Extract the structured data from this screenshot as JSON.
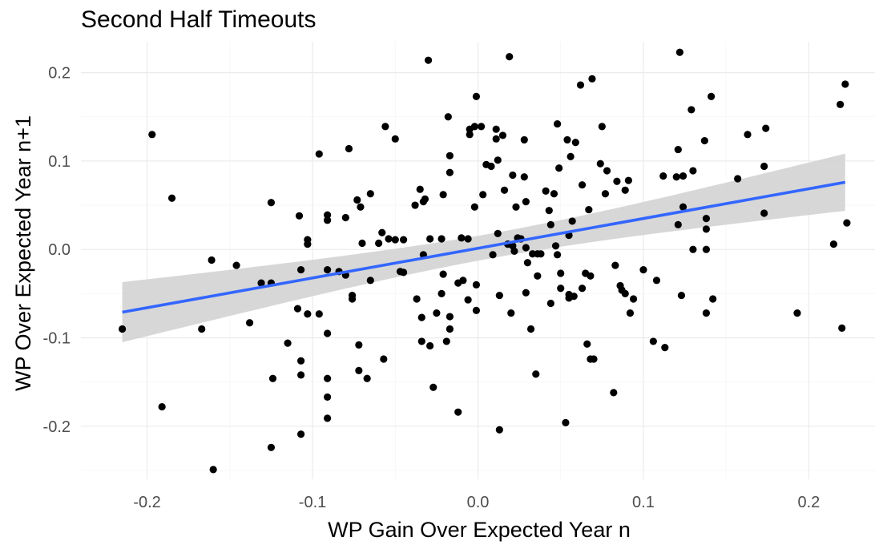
{
  "chart_data": {
    "type": "scatter",
    "title": "Second Half Timeouts",
    "xlabel": "WP Gain Over Expected Year n",
    "ylabel": "WP Over Expected Year n+1",
    "xlim": [
      -0.24,
      0.24
    ],
    "ylim": [
      -0.26,
      0.235
    ],
    "x_ticks": [
      -0.2,
      -0.1,
      0.0,
      0.1,
      0.2
    ],
    "x_tick_labels": [
      "-0.2",
      "-0.1",
      "0.0",
      "0.1",
      "0.2"
    ],
    "y_ticks": [
      -0.2,
      -0.1,
      0.0,
      0.1,
      0.2
    ],
    "y_tick_labels": [
      "-0.2",
      "-0.1",
      "0.0",
      "0.1",
      "0.2"
    ],
    "grid": true,
    "colors": {
      "points": "#000000",
      "fit_line": "#3366FF",
      "ribbon": "#d3d3d3"
    },
    "fit": {
      "method": "linear",
      "x_range": [
        -0.215,
        0.222
      ],
      "y_at_ends": [
        -0.071,
        0.076
      ],
      "ci_lower_at_ends": [
        -0.105,
        0.043
      ],
      "ci_upper_at_ends": [
        -0.037,
        0.109
      ],
      "ci_width_at_center": 0.014,
      "center_x": 0.01
    },
    "points": [
      {
        "x": -0.215,
        "y": -0.09
      },
      {
        "x": -0.197,
        "y": 0.13
      },
      {
        "x": -0.191,
        "y": -0.178
      },
      {
        "x": -0.185,
        "y": 0.058
      },
      {
        "x": -0.167,
        "y": -0.09
      },
      {
        "x": -0.161,
        "y": -0.012
      },
      {
        "x": -0.16,
        "y": -0.249
      },
      {
        "x": -0.146,
        "y": -0.018
      },
      {
        "x": -0.138,
        "y": -0.083
      },
      {
        "x": -0.131,
        "y": -0.038
      },
      {
        "x": -0.125,
        "y": 0.053
      },
      {
        "x": -0.125,
        "y": -0.038
      },
      {
        "x": -0.125,
        "y": -0.224
      },
      {
        "x": -0.124,
        "y": -0.146
      },
      {
        "x": -0.115,
        "y": -0.106
      },
      {
        "x": -0.109,
        "y": -0.067
      },
      {
        "x": -0.108,
        "y": 0.038
      },
      {
        "x": -0.107,
        "y": -0.126
      },
      {
        "x": -0.107,
        "y": -0.142
      },
      {
        "x": -0.107,
        "y": -0.209
      },
      {
        "x": -0.107,
        "y": -0.023
      },
      {
        "x": -0.103,
        "y": -0.073
      },
      {
        "x": -0.103,
        "y": 0.006
      },
      {
        "x": -0.103,
        "y": 0.011
      },
      {
        "x": -0.096,
        "y": 0.108
      },
      {
        "x": -0.096,
        "y": -0.073
      },
      {
        "x": -0.091,
        "y": 0.039
      },
      {
        "x": -0.091,
        "y": 0.033
      },
      {
        "x": -0.091,
        "y": -0.095
      },
      {
        "x": -0.091,
        "y": -0.146
      },
      {
        "x": -0.091,
        "y": -0.167
      },
      {
        "x": -0.091,
        "y": -0.191
      },
      {
        "x": -0.091,
        "y": -0.023
      },
      {
        "x": -0.084,
        "y": -0.025
      },
      {
        "x": -0.08,
        "y": -0.029
      },
      {
        "x": -0.08,
        "y": 0.036
      },
      {
        "x": -0.078,
        "y": 0.114
      },
      {
        "x": -0.076,
        "y": -0.052
      },
      {
        "x": -0.076,
        "y": -0.056
      },
      {
        "x": -0.073,
        "y": 0.056
      },
      {
        "x": -0.072,
        "y": -0.108
      },
      {
        "x": -0.072,
        "y": -0.137
      },
      {
        "x": -0.071,
        "y": 0.048
      },
      {
        "x": -0.07,
        "y": 0.007
      },
      {
        "x": -0.067,
        "y": -0.146
      },
      {
        "x": -0.065,
        "y": 0.063
      },
      {
        "x": -0.065,
        "y": -0.035
      },
      {
        "x": -0.06,
        "y": 0.007
      },
      {
        "x": -0.058,
        "y": 0.019
      },
      {
        "x": -0.057,
        "y": -0.124
      },
      {
        "x": -0.056,
        "y": 0.139
      },
      {
        "x": -0.054,
        "y": 0.012
      },
      {
        "x": -0.05,
        "y": 0.125
      },
      {
        "x": -0.05,
        "y": 0.011
      },
      {
        "x": -0.047,
        "y": -0.025
      },
      {
        "x": -0.045,
        "y": 0.011
      },
      {
        "x": -0.045,
        "y": -0.026
      },
      {
        "x": -0.038,
        "y": 0.05
      },
      {
        "x": -0.037,
        "y": -0.056
      },
      {
        "x": -0.035,
        "y": 0.068
      },
      {
        "x": -0.034,
        "y": -0.077
      },
      {
        "x": -0.034,
        "y": -0.104
      },
      {
        "x": -0.033,
        "y": -0.006
      },
      {
        "x": -0.033,
        "y": 0.054
      },
      {
        "x": -0.032,
        "y": 0.057
      },
      {
        "x": -0.03,
        "y": 0.214
      },
      {
        "x": -0.029,
        "y": -0.109
      },
      {
        "x": -0.029,
        "y": 0.012
      },
      {
        "x": -0.027,
        "y": -0.156
      },
      {
        "x": -0.025,
        "y": -0.072
      },
      {
        "x": -0.022,
        "y": -0.05
      },
      {
        "x": -0.022,
        "y": 0.012
      },
      {
        "x": -0.021,
        "y": -0.028
      },
      {
        "x": -0.021,
        "y": 0.062
      },
      {
        "x": -0.019,
        "y": -0.104
      },
      {
        "x": -0.018,
        "y": 0.15
      },
      {
        "x": -0.017,
        "y": 0.106
      },
      {
        "x": -0.017,
        "y": 0.087
      },
      {
        "x": -0.017,
        "y": -0.09
      },
      {
        "x": -0.017,
        "y": -0.076
      },
      {
        "x": -0.012,
        "y": -0.184
      },
      {
        "x": -0.012,
        "y": -0.038
      },
      {
        "x": -0.01,
        "y": 0.013
      },
      {
        "x": -0.009,
        "y": -0.035
      },
      {
        "x": -0.006,
        "y": -0.057
      },
      {
        "x": -0.006,
        "y": 0.012
      },
      {
        "x": -0.005,
        "y": 0.13
      },
      {
        "x": -0.005,
        "y": 0.136
      },
      {
        "x": -0.002,
        "y": 0.139
      },
      {
        "x": -0.002,
        "y": 0.048
      },
      {
        "x": -0.001,
        "y": 0.173
      },
      {
        "x": -0.001,
        "y": -0.04
      },
      {
        "x": -0.001,
        "y": -0.069
      },
      {
        "x": 0.002,
        "y": 0.139
      },
      {
        "x": 0.003,
        "y": 0.062
      },
      {
        "x": 0.005,
        "y": 0.096
      },
      {
        "x": 0.008,
        "y": 0.094
      },
      {
        "x": 0.009,
        "y": -0.006
      },
      {
        "x": 0.011,
        "y": 0.136
      },
      {
        "x": 0.011,
        "y": 0.125
      },
      {
        "x": 0.012,
        "y": 0.101
      },
      {
        "x": 0.012,
        "y": 0.018
      },
      {
        "x": 0.013,
        "y": -0.052
      },
      {
        "x": 0.013,
        "y": -0.204
      },
      {
        "x": 0.015,
        "y": 0.129
      },
      {
        "x": 0.016,
        "y": 0.067
      },
      {
        "x": 0.018,
        "y": 0.006
      },
      {
        "x": 0.019,
        "y": 0.218
      },
      {
        "x": 0.02,
        "y": -0.072
      },
      {
        "x": 0.021,
        "y": 0.084
      },
      {
        "x": 0.021,
        "y": 0.004
      },
      {
        "x": 0.022,
        "y": -0.002
      },
      {
        "x": 0.023,
        "y": 0.048
      },
      {
        "x": 0.024,
        "y": 0.013
      },
      {
        "x": 0.026,
        "y": 0.012
      },
      {
        "x": 0.028,
        "y": 0.082
      },
      {
        "x": 0.028,
        "y": 0.124
      },
      {
        "x": 0.029,
        "y": 0.054
      },
      {
        "x": 0.029,
        "y": -0.049
      },
      {
        "x": 0.029,
        "y": 0.002
      },
      {
        "x": 0.03,
        "y": -0.015
      },
      {
        "x": 0.032,
        "y": -0.09
      },
      {
        "x": 0.033,
        "y": -0.005
      },
      {
        "x": 0.035,
        "y": -0.141
      },
      {
        "x": 0.036,
        "y": -0.005
      },
      {
        "x": 0.036,
        "y": -0.03
      },
      {
        "x": 0.038,
        "y": -0.005
      },
      {
        "x": 0.041,
        "y": 0.066
      },
      {
        "x": 0.043,
        "y": 0.044
      },
      {
        "x": 0.044,
        "y": -0.061
      },
      {
        "x": 0.044,
        "y": 0.028
      },
      {
        "x": 0.046,
        "y": 0.063
      },
      {
        "x": 0.047,
        "y": 0.004
      },
      {
        "x": 0.048,
        "y": -0.006
      },
      {
        "x": 0.048,
        "y": 0.142
      },
      {
        "x": 0.049,
        "y": 0.092
      },
      {
        "x": 0.05,
        "y": -0.027
      },
      {
        "x": 0.05,
        "y": -0.044
      },
      {
        "x": 0.053,
        "y": -0.196
      },
      {
        "x": 0.054,
        "y": 0.124
      },
      {
        "x": 0.055,
        "y": -0.055
      },
      {
        "x": 0.055,
        "y": -0.051
      },
      {
        "x": 0.055,
        "y": 0.016
      },
      {
        "x": 0.056,
        "y": 0.105
      },
      {
        "x": 0.057,
        "y": 0.032
      },
      {
        "x": 0.058,
        "y": -0.053
      },
      {
        "x": 0.059,
        "y": 0.121
      },
      {
        "x": 0.062,
        "y": 0.186
      },
      {
        "x": 0.063,
        "y": 0.073
      },
      {
        "x": 0.063,
        "y": -0.044
      },
      {
        "x": 0.065,
        "y": -0.027
      },
      {
        "x": 0.066,
        "y": -0.107
      },
      {
        "x": 0.067,
        "y": 0.045
      },
      {
        "x": 0.068,
        "y": -0.124
      },
      {
        "x": 0.068,
        "y": -0.03
      },
      {
        "x": 0.069,
        "y": 0.193
      },
      {
        "x": 0.07,
        "y": -0.124
      },
      {
        "x": 0.074,
        "y": 0.097
      },
      {
        "x": 0.075,
        "y": 0.139
      },
      {
        "x": 0.077,
        "y": 0.063
      },
      {
        "x": 0.078,
        "y": 0.089
      },
      {
        "x": 0.082,
        "y": -0.162
      },
      {
        "x": 0.083,
        "y": -0.018
      },
      {
        "x": 0.084,
        "y": 0.077
      },
      {
        "x": 0.086,
        "y": -0.041
      },
      {
        "x": 0.087,
        "y": -0.046
      },
      {
        "x": 0.089,
        "y": 0.067
      },
      {
        "x": 0.089,
        "y": -0.05
      },
      {
        "x": 0.091,
        "y": 0.078
      },
      {
        "x": 0.092,
        "y": -0.072
      },
      {
        "x": 0.094,
        "y": -0.056
      },
      {
        "x": 0.1,
        "y": -0.023
      },
      {
        "x": 0.106,
        "y": -0.104
      },
      {
        "x": 0.108,
        "y": -0.035
      },
      {
        "x": 0.112,
        "y": 0.083
      },
      {
        "x": 0.113,
        "y": -0.111
      },
      {
        "x": 0.12,
        "y": 0.082
      },
      {
        "x": 0.121,
        "y": 0.028
      },
      {
        "x": 0.121,
        "y": 0.113
      },
      {
        "x": 0.122,
        "y": 0.223
      },
      {
        "x": 0.123,
        "y": -0.052
      },
      {
        "x": 0.124,
        "y": 0.083
      },
      {
        "x": 0.124,
        "y": 0.048
      },
      {
        "x": 0.129,
        "y": 0.158
      },
      {
        "x": 0.13,
        "y": 0.0
      },
      {
        "x": 0.13,
        "y": 0.089
      },
      {
        "x": 0.137,
        "y": 0.123
      },
      {
        "x": 0.138,
        "y": 0.0
      },
      {
        "x": 0.138,
        "y": 0.035
      },
      {
        "x": 0.138,
        "y": 0.023
      },
      {
        "x": 0.138,
        "y": -0.072
      },
      {
        "x": 0.141,
        "y": 0.173
      },
      {
        "x": 0.142,
        "y": -0.056
      },
      {
        "x": 0.157,
        "y": 0.08
      },
      {
        "x": 0.163,
        "y": 0.13
      },
      {
        "x": 0.173,
        "y": 0.094
      },
      {
        "x": 0.173,
        "y": 0.041
      },
      {
        "x": 0.174,
        "y": 0.137
      },
      {
        "x": 0.193,
        "y": -0.072
      },
      {
        "x": 0.215,
        "y": 0.006
      },
      {
        "x": 0.219,
        "y": 0.164
      },
      {
        "x": 0.22,
        "y": -0.089
      },
      {
        "x": 0.222,
        "y": 0.187
      },
      {
        "x": 0.223,
        "y": 0.03
      }
    ]
  }
}
